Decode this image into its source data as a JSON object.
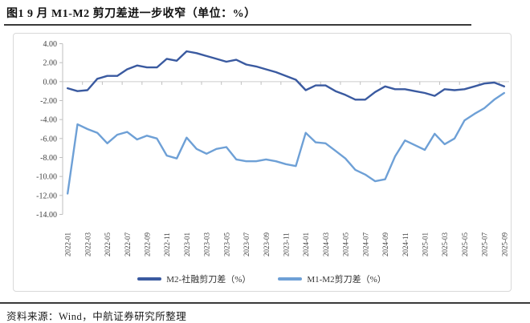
{
  "page": {
    "title": "图1  9 月 M1-M2 剪刀差进一步收窄（单位：%）",
    "source_note": "资料来源：Wind，中航证券研究所整理"
  },
  "chart_data": {
    "type": "line",
    "title": "9月M1-M2剪刀差进一步收窄",
    "unit": "%",
    "ylim": [
      -14,
      4
    ],
    "y_step": 2,
    "y_tick_format": "2dp",
    "grid": "zero-line-only",
    "legend_position": "bottom",
    "x_tick_every": 2,
    "x": [
      "2022-01",
      "2022-02",
      "2022-03",
      "2022-04",
      "2022-05",
      "2022-06",
      "2022-07",
      "2022-08",
      "2022-09",
      "2022-10",
      "2022-11",
      "2022-12",
      "2023-01",
      "2023-02",
      "2023-03",
      "2023-04",
      "2023-05",
      "2023-06",
      "2023-07",
      "2023-08",
      "2023-09",
      "2023-10",
      "2023-11",
      "2023-12",
      "2024-01",
      "2024-02",
      "2024-03",
      "2024-04",
      "2024-05",
      "2024-06",
      "2024-07",
      "2024-08",
      "2024-09",
      "2024-10",
      "2024-11",
      "2024-12",
      "2025-01",
      "2025-02",
      "2025-03",
      "2025-04",
      "2025-05",
      "2025-06",
      "2025-07",
      "2025-08",
      "2025-09"
    ],
    "series": [
      {
        "name": "M2-社融剪刀差（%）",
        "color": "#3A5AA0",
        "values": [
          -0.7,
          -1.0,
          -0.9,
          0.3,
          0.6,
          0.6,
          1.3,
          1.7,
          1.5,
          1.5,
          2.4,
          2.2,
          3.2,
          3.0,
          2.7,
          2.4,
          2.1,
          2.3,
          1.8,
          1.6,
          1.3,
          1.0,
          0.6,
          0.2,
          -0.9,
          -0.4,
          -0.4,
          -1.0,
          -1.4,
          -1.9,
          -1.9,
          -1.1,
          -0.5,
          -0.8,
          -0.8,
          -1.0,
          -1.2,
          -1.5,
          -0.8,
          -0.9,
          -0.8,
          -0.5,
          -0.2,
          -0.1,
          -0.5
        ]
      },
      {
        "name": "M1-M2剪刀差（%）",
        "color": "#6EA0D6",
        "values": [
          -11.8,
          -4.5,
          -5.0,
          -5.4,
          -6.5,
          -5.6,
          -5.3,
          -6.1,
          -5.7,
          -6.0,
          -7.8,
          -8.1,
          -5.9,
          -7.1,
          -7.6,
          -7.1,
          -6.9,
          -8.2,
          -8.4,
          -8.4,
          -8.2,
          -8.4,
          -8.7,
          -8.9,
          -5.4,
          -6.4,
          -6.5,
          -7.3,
          -8.1,
          -9.3,
          -9.8,
          -10.5,
          -10.3,
          -7.9,
          -6.2,
          -6.7,
          -7.2,
          -5.5,
          -6.6,
          -6.0,
          -4.1,
          -3.4,
          -2.8,
          -1.9,
          -1.2
        ]
      }
    ],
    "style": {
      "axis_color": "#bfbfbf",
      "gridline_color": "#cccccc",
      "tick_label_color": "#404040",
      "line_width": 2.4
    }
  }
}
